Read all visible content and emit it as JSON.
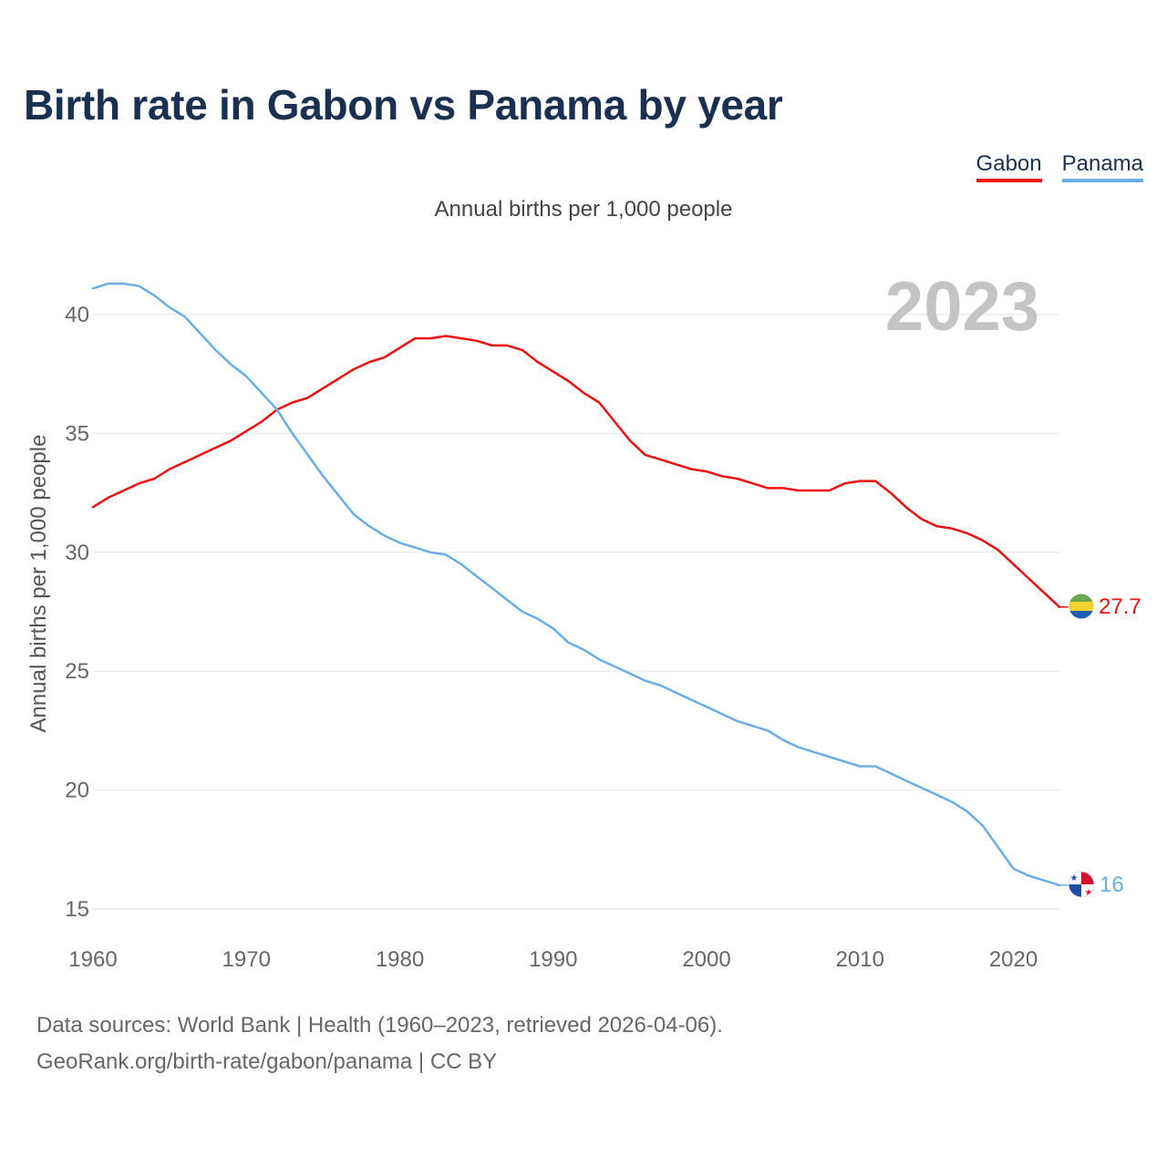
{
  "title": "Birth rate in Gabon vs Panama by year",
  "legend": {
    "gabon": "Gabon",
    "panama": "Panama"
  },
  "subtitle": "Annual births per 1,000 people",
  "year_label": "2023",
  "footer": {
    "line1": "Data sources: World Bank | Health (1960–2023, retrieved 2026-04-06).",
    "line2": "GeoRank.org/birth-rate/gabon/panama | CC BY"
  },
  "colors": {
    "gabon": "#ee1111",
    "panama": "#6aaee6",
    "title": "#1a3050",
    "grid": "#e6e6e6",
    "axis_text": "#666666"
  },
  "chart_data": {
    "type": "line",
    "title": "Birth rate in Gabon vs Panama by year",
    "xlabel": "",
    "ylabel": "Annual births per 1,000 people",
    "xlim": [
      1960,
      2023
    ],
    "ylim": [
      15,
      42
    ],
    "x_ticks": [
      1960,
      1970,
      1980,
      1990,
      2000,
      2010,
      2020
    ],
    "y_ticks": [
      15,
      20,
      25,
      30,
      35,
      40
    ],
    "grid": true,
    "legend_position": "top-right",
    "x": [
      1960,
      1961,
      1962,
      1963,
      1964,
      1965,
      1966,
      1967,
      1968,
      1969,
      1970,
      1971,
      1972,
      1973,
      1974,
      1975,
      1976,
      1977,
      1978,
      1979,
      1980,
      1981,
      1982,
      1983,
      1984,
      1985,
      1986,
      1987,
      1988,
      1989,
      1990,
      1991,
      1992,
      1993,
      1994,
      1995,
      1996,
      1997,
      1998,
      1999,
      2000,
      2001,
      2002,
      2003,
      2004,
      2005,
      2006,
      2007,
      2008,
      2009,
      2010,
      2011,
      2012,
      2013,
      2014,
      2015,
      2016,
      2017,
      2018,
      2019,
      2020,
      2021,
      2022,
      2023
    ],
    "series": [
      {
        "name": "Gabon",
        "end_label": "27.7",
        "values": [
          31.9,
          32.3,
          32.6,
          32.9,
          33.1,
          33.5,
          33.8,
          34.1,
          34.4,
          34.7,
          35.1,
          35.5,
          36.0,
          36.3,
          36.5,
          36.9,
          37.3,
          37.7,
          38.0,
          38.2,
          38.6,
          39.0,
          39.0,
          39.1,
          39.0,
          38.9,
          38.7,
          38.7,
          38.5,
          38.0,
          37.6,
          37.2,
          36.7,
          36.3,
          35.5,
          34.7,
          34.1,
          33.9,
          33.7,
          33.5,
          33.4,
          33.2,
          33.1,
          32.9,
          32.7,
          32.7,
          32.6,
          32.6,
          32.6,
          32.9,
          33.0,
          33.0,
          32.5,
          31.9,
          31.4,
          31.1,
          31.0,
          30.8,
          30.5,
          30.1,
          29.5,
          28.9,
          28.3,
          27.7
        ]
      },
      {
        "name": "Panama",
        "end_label": "16",
        "values": [
          41.1,
          41.3,
          41.3,
          41.2,
          40.8,
          40.3,
          39.9,
          39.2,
          38.5,
          37.9,
          37.4,
          36.7,
          36.0,
          35.0,
          34.1,
          33.2,
          32.4,
          31.6,
          31.1,
          30.7,
          30.4,
          30.2,
          30.0,
          29.9,
          29.5,
          29.0,
          28.5,
          28.0,
          27.5,
          27.2,
          26.8,
          26.2,
          25.9,
          25.5,
          25.2,
          24.9,
          24.6,
          24.4,
          24.1,
          23.8,
          23.5,
          23.2,
          22.9,
          22.7,
          22.5,
          22.1,
          21.8,
          21.6,
          21.4,
          21.2,
          21.0,
          21.0,
          20.7,
          20.4,
          20.1,
          19.8,
          19.5,
          19.1,
          18.5,
          17.6,
          16.7,
          16.4,
          16.2,
          16.0
        ]
      }
    ]
  }
}
